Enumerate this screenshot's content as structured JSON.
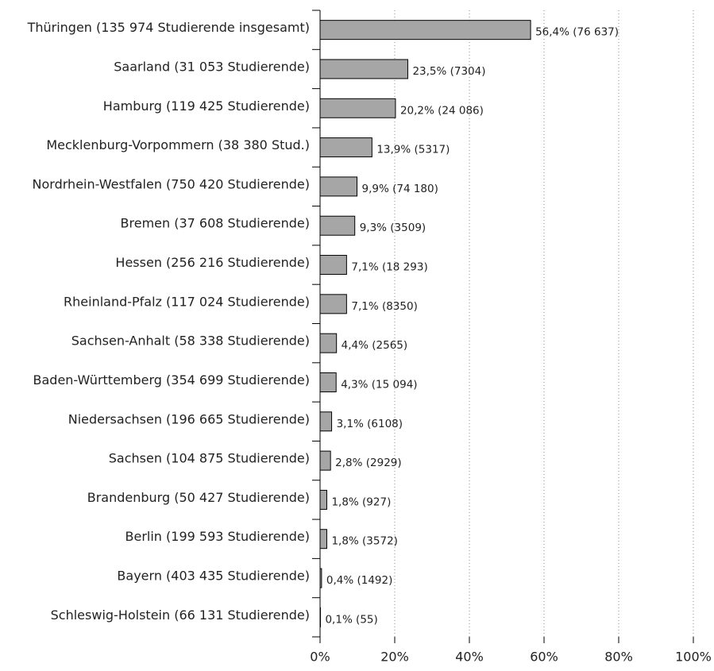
{
  "chart_data": {
    "type": "bar",
    "orientation": "horizontal",
    "categories": [
      "Thüringen (135 974 Studierende insgesamt)",
      "Saarland (31 053 Studierende)",
      "Hamburg (119 425 Studierende)",
      "Mecklenburg-Vorpommern (38 380 Stud.)",
      "Nordrhein-Westfalen (750 420 Studierende)",
      "Bremen (37 608 Studierende)",
      "Hessen (256 216 Studierende)",
      "Rheinland-Pfalz (117 024 Studierende)",
      "Sachsen-Anhalt (58 338 Studierende)",
      "Baden-Württemberg (354 699 Studierende)",
      "Niedersachsen (196 665 Studierende)",
      "Sachsen (104 875 Studierende)",
      "Brandenburg (50 427 Studierende)",
      "Berlin (199 593 Studierende)",
      "Bayern (403 435 Studierende)",
      "Schleswig-Holstein (66 131 Studierende)"
    ],
    "values": [
      56.4,
      23.5,
      20.2,
      13.9,
      9.9,
      9.3,
      7.1,
      7.1,
      4.4,
      4.3,
      3.1,
      2.8,
      1.8,
      1.8,
      0.4,
      0.1
    ],
    "value_labels": [
      "56,4% (76 637)",
      "23,5% (7304)",
      "20,2% (24 086)",
      "13,9% (5317)",
      "9,9% (74 180)",
      "9,3% (3509)",
      "7,1% (18 293)",
      "7,1% (8350)",
      "4,4% (2565)",
      "4,3% (15 094)",
      "3,1% (6108)",
      "2,8% (2929)",
      "1,8% (927)",
      "1,8% (3572)",
      "0,4% (1492)",
      "0,1% (55)"
    ],
    "color": "#a6a6a6",
    "xlim": [
      0,
      100
    ],
    "xticks": [
      {
        "value": 0,
        "label": "0%"
      },
      {
        "value": 20,
        "label": "20%"
      },
      {
        "value": 40,
        "label": "40%"
      },
      {
        "value": 60,
        "label": "60%"
      },
      {
        "value": 80,
        "label": "80%"
      },
      {
        "value": 100,
        "label": "100%"
      }
    ],
    "grid": true
  }
}
